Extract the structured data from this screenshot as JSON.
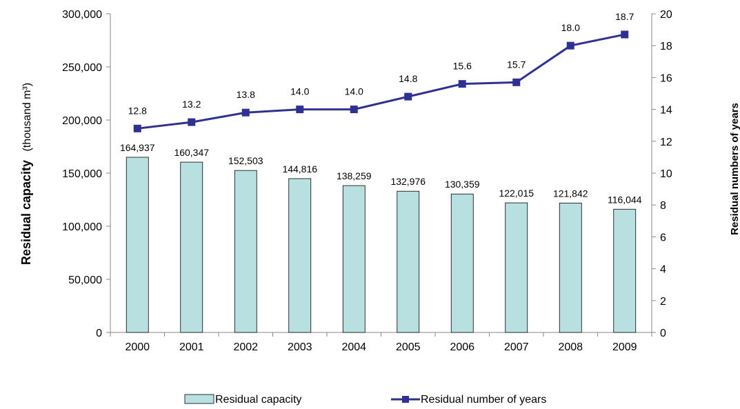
{
  "chart_data": {
    "type": "bar",
    "categories": [
      "2000",
      "2001",
      "2002",
      "2003",
      "2004",
      "2005",
      "2006",
      "2007",
      "2008",
      "2009"
    ],
    "series": [
      {
        "name": "Residual capacity",
        "type": "bar",
        "axis": "left",
        "values": [
          164937,
          160347,
          152503,
          144816,
          138259,
          132976,
          130359,
          122015,
          121842,
          116044
        ],
        "labels": [
          "164,937",
          "160,347",
          "152,503",
          "144,816",
          "138,259",
          "132,976",
          "130,359",
          "122,015",
          "121,842",
          "116,044"
        ],
        "color": "#b8e0e0"
      },
      {
        "name": "Residual number of years",
        "type": "line",
        "axis": "right",
        "values": [
          12.8,
          13.2,
          13.8,
          14.0,
          14.0,
          14.8,
          15.6,
          15.7,
          18.0,
          18.7
        ],
        "labels": [
          "12.8",
          "13.2",
          "13.8",
          "14.0",
          "14.0",
          "14.8",
          "15.6",
          "15.7",
          "18.0",
          "18.7"
        ],
        "color": "#2e3192"
      }
    ],
    "ylabel_bold": "Residual capacity",
    "ylabel_unit": "(thousand  m³)",
    "y2label": "Residual numbers of years",
    "ylim": [
      0,
      300000
    ],
    "y2lim": [
      0,
      20
    ],
    "y_ticks": [
      "0",
      "50,000",
      "100,000",
      "150,000",
      "200,000",
      "250,000",
      "300,000"
    ],
    "y2_ticks": [
      "0",
      "2",
      "4",
      "6",
      "8",
      "10",
      "12",
      "14",
      "16",
      "18",
      "20"
    ],
    "grid": false,
    "legend_position": "bottom"
  }
}
